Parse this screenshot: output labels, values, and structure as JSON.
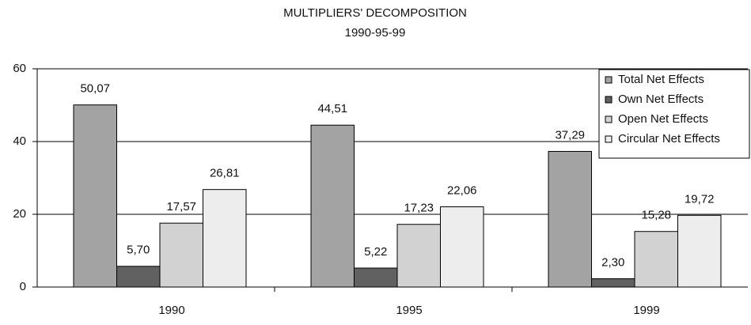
{
  "chart_data": {
    "type": "bar",
    "title": "MULTIPLIERS' DECOMPOSITION",
    "subtitle": "1990-95-99",
    "categories": [
      "1990",
      "1995",
      "1999"
    ],
    "series": [
      {
        "name": "Total Net Effects",
        "color": "#a3a3a3",
        "values": [
          50.07,
          44.51,
          37.29
        ],
        "value_labels": [
          "50,07",
          "44,51",
          "37,29"
        ]
      },
      {
        "name": "Own Net Effects",
        "color": "#616161",
        "values": [
          5.7,
          5.22,
          2.3
        ],
        "value_labels": [
          "5,70",
          "5,22",
          "2,30"
        ]
      },
      {
        "name": "Open Net Effects",
        "color": "#d2d2d2",
        "values": [
          17.57,
          17.23,
          15.28
        ],
        "value_labels": [
          "17,57",
          "17,23",
          "15,28"
        ]
      },
      {
        "name": "Circular Net Effects",
        "color": "#ededed",
        "values": [
          26.81,
          22.06,
          19.72
        ],
        "value_labels": [
          "26,81",
          "22,06",
          "19,72"
        ]
      }
    ],
    "ylim": [
      0,
      60
    ],
    "yticks": [
      0,
      20,
      40,
      60
    ],
    "grid": true,
    "legend": "top-right"
  }
}
